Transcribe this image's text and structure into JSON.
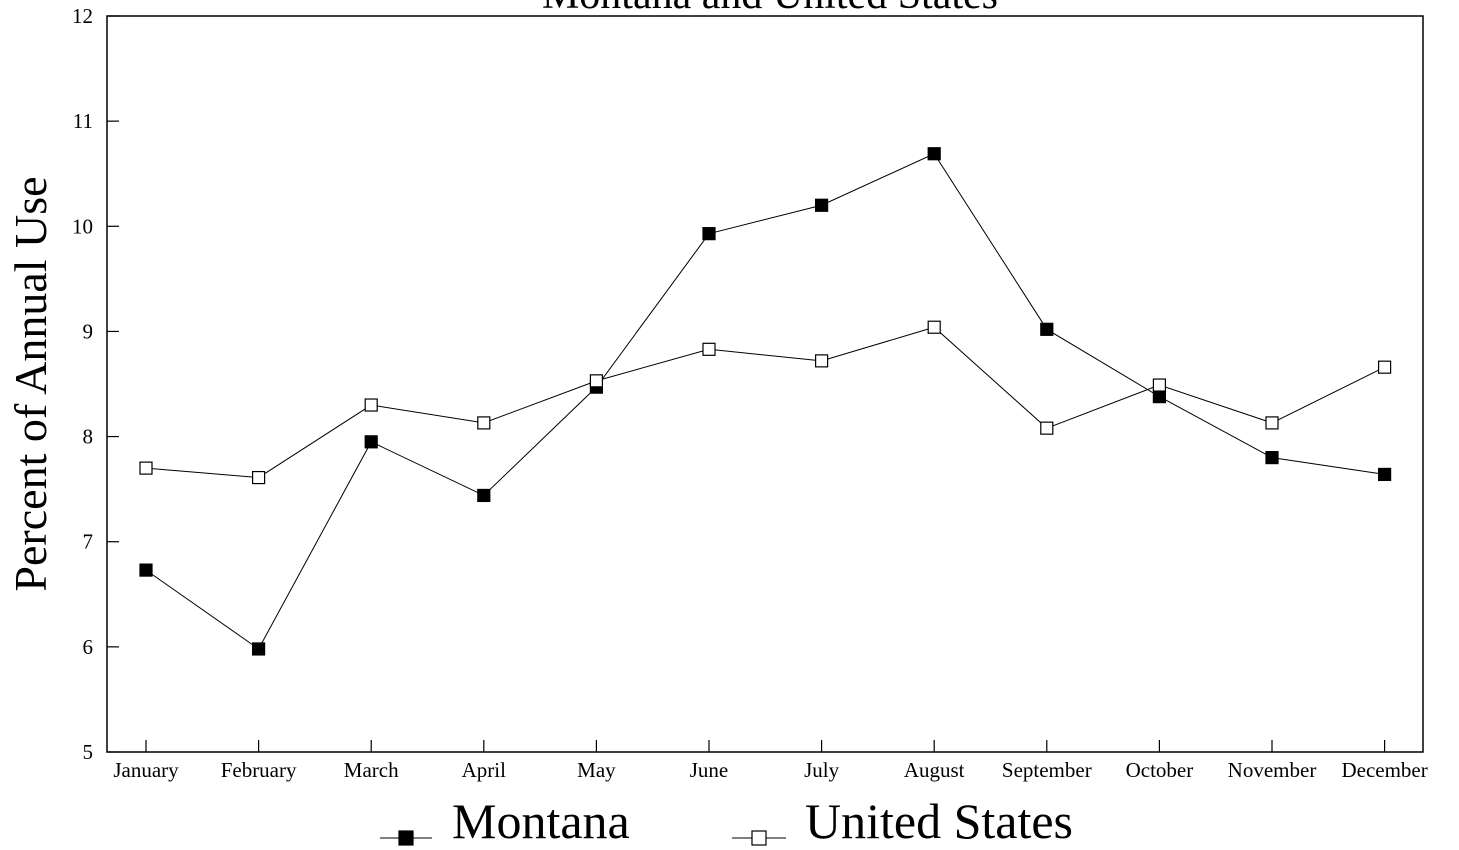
{
  "chart_data": {
    "type": "line",
    "title": "Montana and United States",
    "xlabel": "",
    "ylabel": "Percent of Annual Use",
    "categories": [
      "January",
      "February",
      "March",
      "April",
      "May",
      "June",
      "July",
      "August",
      "September",
      "October",
      "November",
      "December"
    ],
    "ylim": [
      5,
      12
    ],
    "yticks": [
      "5",
      "6",
      "7",
      "8",
      "9",
      "10",
      "11",
      "12"
    ],
    "grid": false,
    "legend_position": "bottom",
    "series": [
      {
        "name": "Montana",
        "marker": "filled-square",
        "values": [
          6.73,
          5.98,
          7.95,
          7.44,
          8.47,
          9.93,
          10.2,
          10.69,
          9.02,
          8.38,
          7.8,
          7.64
        ]
      },
      {
        "name": "United States",
        "marker": "open-square",
        "values": [
          7.7,
          7.61,
          8.3,
          8.13,
          8.53,
          8.83,
          8.72,
          9.04,
          8.08,
          8.49,
          8.13,
          8.66
        ]
      }
    ]
  }
}
